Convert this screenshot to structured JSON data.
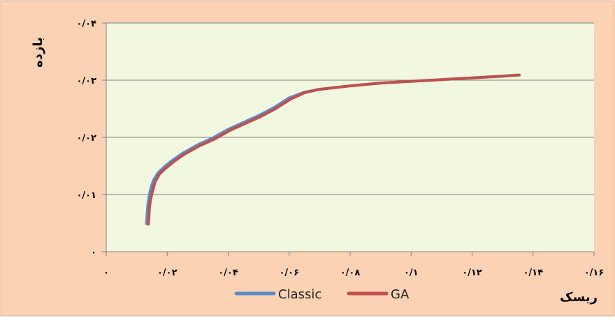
{
  "chart_data": {
    "type": "line",
    "title": "",
    "xlabel": "ریسک",
    "ylabel": "بازده",
    "xlim": [
      0,
      0.16
    ],
    "ylim": [
      0,
      0.04
    ],
    "x_ticks": [
      0,
      0.02,
      0.04,
      0.06,
      0.08,
      0.1,
      0.12,
      0.14,
      0.16
    ],
    "x_tick_labels": [
      "۰",
      "۰/۰۲",
      "۰/۰۴",
      "۰/۰۶",
      "۰/۰۸",
      "۰/۱",
      "۰/۱۲",
      "۰/۱۴",
      "۰/۱۶"
    ],
    "y_ticks": [
      0,
      0.01,
      0.02,
      0.03,
      0.04
    ],
    "y_tick_labels": [
      "۰",
      "۰/۰۱",
      "۰/۰۲",
      "۰/۰۳",
      "۰/۰۴"
    ],
    "grid": "horizontal",
    "legend_position": "bottom",
    "series": [
      {
        "name": "Classic",
        "color": "#5b8cc8",
        "x": [
          0.0132,
          0.0134,
          0.0136,
          0.014,
          0.0145,
          0.0155,
          0.017,
          0.019,
          0.0215,
          0.025,
          0.03,
          0.035,
          0.04,
          0.045,
          0.05,
          0.055,
          0.06,
          0.065,
          0.07,
          0.08,
          0.09,
          0.1,
          0.11,
          0.12,
          0.13,
          0.135
        ],
        "y": [
          0.0049,
          0.0065,
          0.008,
          0.0095,
          0.0108,
          0.0125,
          0.0138,
          0.0148,
          0.0159,
          0.0172,
          0.0187,
          0.0199,
          0.0214,
          0.0226,
          0.0238,
          0.0252,
          0.0269,
          0.0279,
          0.0284,
          0.029,
          0.0295,
          0.0298,
          0.0301,
          0.0304,
          0.0307,
          0.0309
        ]
      },
      {
        "name": "GA",
        "color": "#c0504d",
        "x": [
          0.0138,
          0.014,
          0.0142,
          0.0146,
          0.0152,
          0.016,
          0.0175,
          0.0195,
          0.022,
          0.0255,
          0.0305,
          0.0355,
          0.0405,
          0.0455,
          0.0505,
          0.0555,
          0.0605,
          0.065,
          0.07,
          0.08,
          0.09,
          0.1,
          0.11,
          0.12,
          0.13,
          0.1355
        ],
        "y": [
          0.0048,
          0.0062,
          0.0078,
          0.0093,
          0.0106,
          0.0122,
          0.0136,
          0.0146,
          0.0157,
          0.017,
          0.0185,
          0.0197,
          0.0212,
          0.0224,
          0.0236,
          0.025,
          0.0267,
          0.0278,
          0.0284,
          0.029,
          0.0295,
          0.0298,
          0.0301,
          0.0304,
          0.0307,
          0.0309
        ]
      }
    ]
  },
  "colors": {
    "frame_background": "#fbd2b4",
    "plot_background": "#f2f7df",
    "gridline": "#7f7f7f",
    "axis": "#808080"
  }
}
